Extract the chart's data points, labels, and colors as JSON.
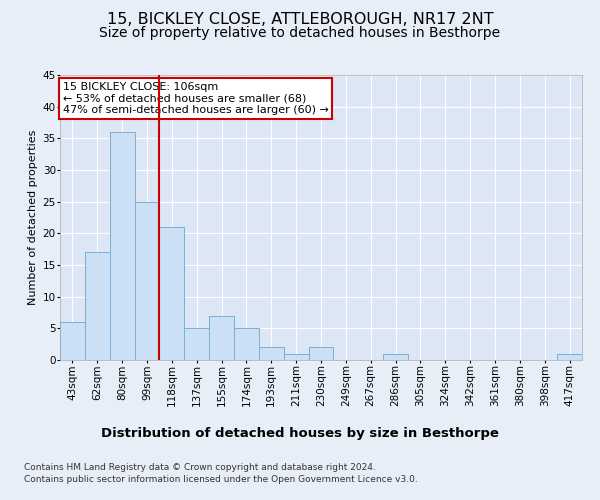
{
  "title": "15, BICKLEY CLOSE, ATTLEBOROUGH, NR17 2NT",
  "subtitle": "Size of property relative to detached houses in Besthorpe",
  "xlabel": "Distribution of detached houses by size in Besthorpe",
  "ylabel": "Number of detached properties",
  "categories": [
    "43sqm",
    "62sqm",
    "80sqm",
    "99sqm",
    "118sqm",
    "137sqm",
    "155sqm",
    "174sqm",
    "193sqm",
    "211sqm",
    "230sqm",
    "249sqm",
    "267sqm",
    "286sqm",
    "305sqm",
    "324sqm",
    "342sqm",
    "361sqm",
    "380sqm",
    "398sqm",
    "417sqm"
  ],
  "values": [
    6,
    17,
    36,
    25,
    21,
    5,
    7,
    5,
    2,
    1,
    2,
    0,
    0,
    1,
    0,
    0,
    0,
    0,
    0,
    0,
    1
  ],
  "bar_color": "#cce0f5",
  "bar_edge_color": "#7aafd4",
  "red_line_x": 3.5,
  "ylim": [
    0,
    45
  ],
  "yticks": [
    0,
    5,
    10,
    15,
    20,
    25,
    30,
    35,
    40,
    45
  ],
  "annotation_title": "15 BICKLEY CLOSE: 106sqm",
  "annotation_line1": "← 53% of detached houses are smaller (68)",
  "annotation_line2": "47% of semi-detached houses are larger (60) →",
  "annotation_box_color": "#ffffff",
  "annotation_box_edge": "#cc0000",
  "footer_line1": "Contains HM Land Registry data © Crown copyright and database right 2024.",
  "footer_line2": "Contains public sector information licensed under the Open Government Licence v3.0.",
  "background_color": "#e8eef8",
  "plot_bg_color": "#dce6f5",
  "grid_color": "#ffffff",
  "title_fontsize": 11.5,
  "subtitle_fontsize": 10,
  "xlabel_fontsize": 9.5,
  "ylabel_fontsize": 8,
  "tick_fontsize": 7.5,
  "footer_fontsize": 6.5
}
